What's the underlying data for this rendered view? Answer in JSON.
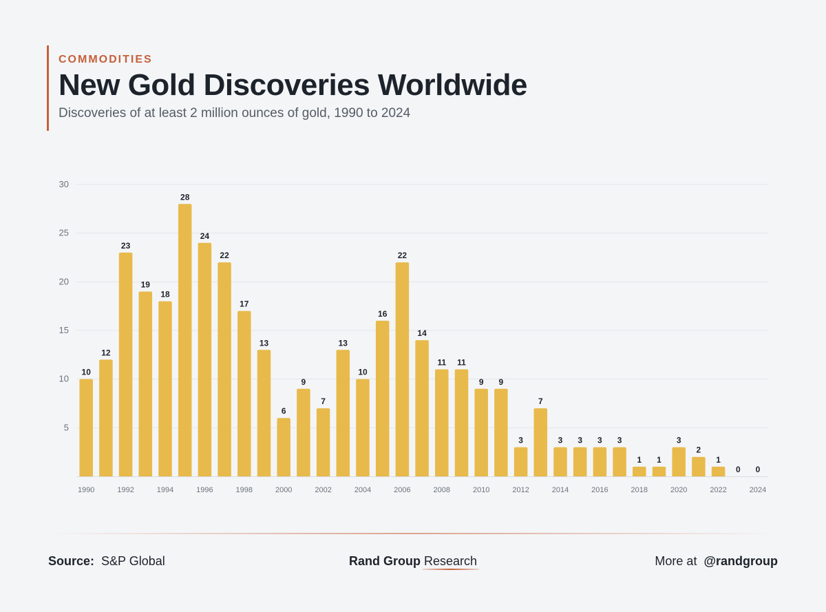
{
  "header": {
    "kicker": "COMMODITIES",
    "title": "New Gold Discoveries Worldwide",
    "subtitle": "Discoveries of at least 2 million ounces of gold, 1990 to 2024"
  },
  "chart_data": {
    "type": "bar",
    "categories": [
      1990,
      1991,
      1992,
      1993,
      1994,
      1995,
      1996,
      1997,
      1998,
      1999,
      2000,
      2001,
      2002,
      2003,
      2004,
      2005,
      2006,
      2007,
      2008,
      2009,
      2010,
      2011,
      2012,
      2013,
      2014,
      2015,
      2016,
      2017,
      2018,
      2019,
      2020,
      2021,
      2022,
      2023,
      2024
    ],
    "values": [
      10,
      12,
      23,
      19,
      18,
      28,
      24,
      22,
      17,
      13,
      6,
      9,
      7,
      13,
      10,
      16,
      22,
      14,
      11,
      11,
      9,
      9,
      3,
      7,
      3,
      3,
      3,
      3,
      1,
      1,
      3,
      2,
      1,
      0,
      0
    ],
    "x_tick_labels": [
      "1990",
      "1992",
      "1994",
      "1996",
      "1998",
      "2000",
      "2002",
      "2004",
      "2006",
      "2008",
      "2010",
      "2012",
      "2014",
      "2016",
      "2018",
      "2020",
      "2022",
      "2024"
    ],
    "y_ticks": [
      5,
      10,
      15,
      20,
      25,
      30
    ],
    "ylim": [
      0,
      30
    ],
    "grid": true,
    "bar_color": "#e8ba4b",
    "title": "",
    "xlabel": "",
    "ylabel": ""
  },
  "footer": {
    "source_label": "Source:",
    "source_value": "S&P Global",
    "brand_bold": "Rand Group",
    "brand_regular": "Research",
    "more_label": "More at",
    "handle": "@randgroup"
  },
  "colors": {
    "accent": "#c4613a",
    "bar": "#e8ba4b",
    "background": "#f4f5f7"
  }
}
